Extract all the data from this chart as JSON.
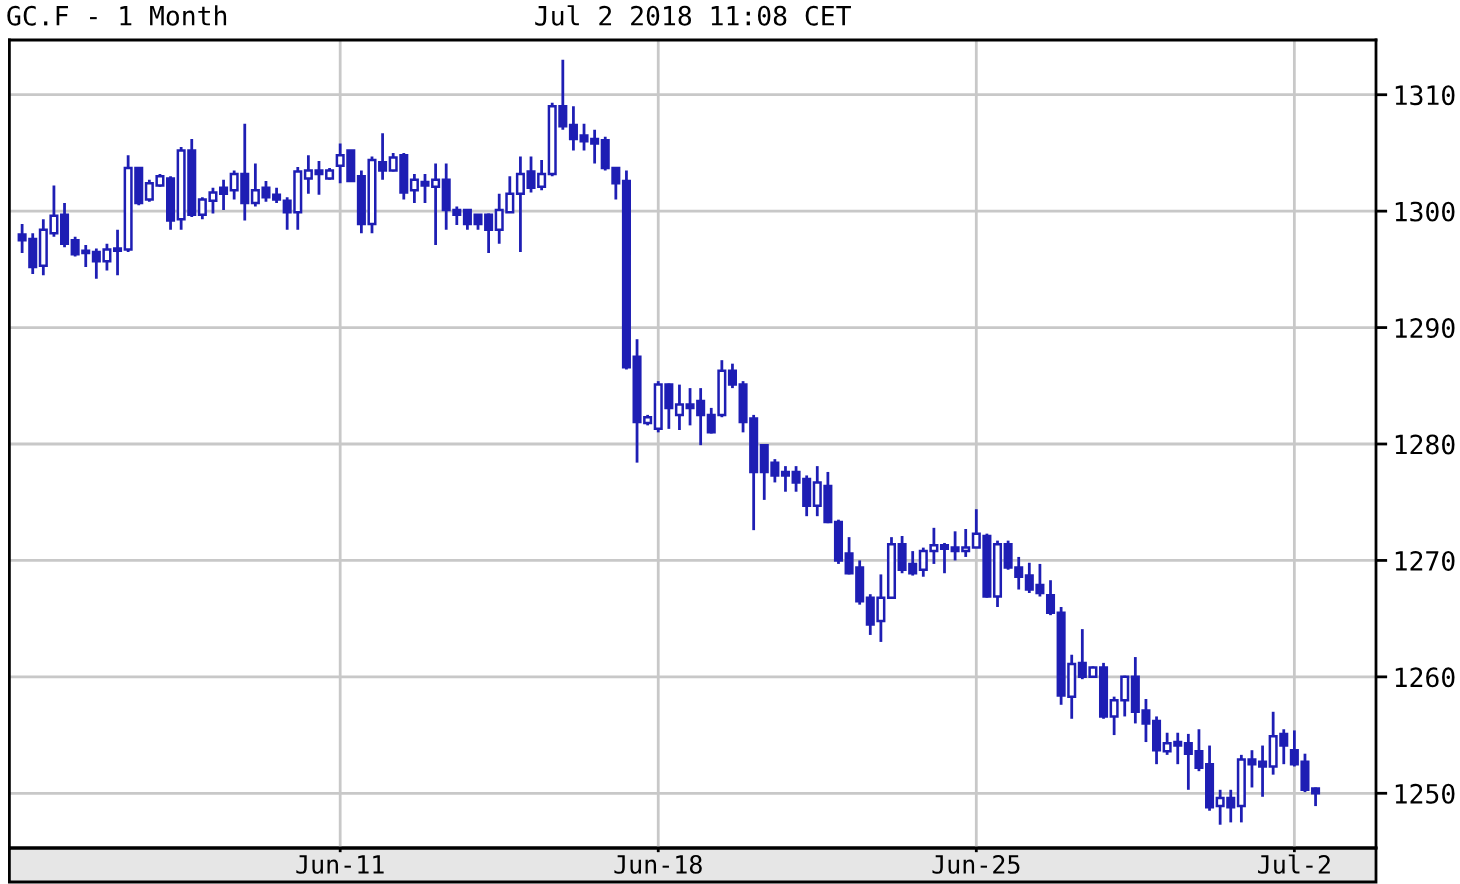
{
  "chart_data": {
    "type": "candlestick",
    "title": "GC.F - 1 Month",
    "subtitle": "Jul 2 2018 11:08 CET",
    "categories": [
      null,
      null,
      null,
      null,
      null,
      null,
      null,
      null,
      null,
      null,
      null,
      null,
      null,
      null,
      null,
      null,
      null,
      null,
      null,
      null,
      null,
      null,
      null,
      null,
      null,
      null,
      null,
      null,
      null,
      null,
      "Jun-11",
      null,
      null,
      null,
      null,
      null,
      null,
      null,
      null,
      null,
      null,
      null,
      null,
      null,
      null,
      null,
      null,
      null,
      null,
      null,
      null,
      null,
      null,
      null,
      null,
      null,
      null,
      null,
      null,
      null,
      "Jun-18",
      null,
      null,
      null,
      null,
      null,
      null,
      null,
      null,
      null,
      null,
      null,
      null,
      null,
      null,
      null,
      null,
      null,
      null,
      null,
      null,
      null,
      null,
      null,
      null,
      null,
      null,
      null,
      null,
      null,
      "Jun-25",
      null,
      null,
      null,
      null,
      null,
      null,
      null,
      null,
      null,
      null,
      null,
      null,
      null,
      null,
      null,
      null,
      null,
      null,
      null,
      null,
      null,
      null,
      null,
      null,
      null,
      null,
      null,
      null,
      null,
      "Jul-2",
      null,
      null
    ],
    "ohlc": [
      [
        1298.0,
        1298.9,
        1296.4,
        1297.5
      ],
      [
        1297.6,
        1298.1,
        1294.6,
        1295.2
      ],
      [
        1295.3,
        1299.3,
        1294.5,
        1298.4
      ],
      [
        1298.1,
        1302.2,
        1297.8,
        1299.6
      ],
      [
        1299.7,
        1300.7,
        1296.9,
        1297.2
      ],
      [
        1297.5,
        1297.8,
        1296.1,
        1296.3
      ],
      [
        1296.6,
        1297.1,
        1295.2,
        1296.4
      ],
      [
        1296.5,
        1296.8,
        1294.2,
        1295.7
      ],
      [
        1295.7,
        1297.2,
        1294.9,
        1296.7
      ],
      [
        1296.6,
        1298.4,
        1294.5,
        1296.8
      ],
      [
        1296.7,
        1304.8,
        1296.5,
        1303.7
      ],
      [
        1303.7,
        1303.7,
        1300.5,
        1300.7
      ],
      [
        1301.0,
        1302.7,
        1300.8,
        1302.4
      ],
      [
        1302.2,
        1303.2,
        1302.1,
        1303.0
      ],
      [
        1302.8,
        1303.0,
        1298.4,
        1299.2
      ],
      [
        1299.3,
        1305.5,
        1298.4,
        1305.2
      ],
      [
        1305.2,
        1306.2,
        1299.5,
        1299.7
      ],
      [
        1299.7,
        1301.2,
        1299.3,
        1301.0
      ],
      [
        1300.9,
        1302.0,
        1299.8,
        1301.6
      ],
      [
        1302.0,
        1302.7,
        1300.1,
        1301.5
      ],
      [
        1301.8,
        1303.5,
        1301.0,
        1303.2
      ],
      [
        1303.2,
        1307.5,
        1299.2,
        1300.7
      ],
      [
        1300.7,
        1304.1,
        1300.4,
        1301.8
      ],
      [
        1302.0,
        1302.6,
        1300.8,
        1301.2
      ],
      [
        1301.4,
        1302.0,
        1300.7,
        1301.0
      ],
      [
        1300.9,
        1301.2,
        1298.4,
        1299.9
      ],
      [
        1299.9,
        1303.8,
        1298.4,
        1303.4
      ],
      [
        1302.8,
        1304.8,
        1301.5,
        1303.5
      ],
      [
        1303.5,
        1304.3,
        1301.4,
        1303.2
      ],
      [
        1302.8,
        1303.7,
        1302.7,
        1303.5
      ],
      [
        1303.9,
        1305.8,
        1302.4,
        1304.8
      ],
      [
        1305.2,
        1305.2,
        1302.5,
        1302.6
      ],
      [
        1303.0,
        1303.5,
        1298.1,
        1298.9
      ],
      [
        1298.9,
        1304.7,
        1298.1,
        1304.4
      ],
      [
        1304.2,
        1306.7,
        1302.7,
        1303.5
      ],
      [
        1303.5,
        1305.0,
        1303.4,
        1304.6
      ],
      [
        1304.8,
        1305.0,
        1301.0,
        1301.6
      ],
      [
        1301.8,
        1303.2,
        1300.7,
        1302.7
      ],
      [
        1302.5,
        1303.2,
        1300.7,
        1302.2
      ],
      [
        1302.1,
        1304.1,
        1297.1,
        1302.7
      ],
      [
        1302.7,
        1304.1,
        1298.4,
        1300.1
      ],
      [
        1300.1,
        1300.4,
        1298.8,
        1299.7
      ],
      [
        1300.1,
        1300.1,
        1298.4,
        1298.9
      ],
      [
        1299.7,
        1299.7,
        1298.4,
        1298.9
      ],
      [
        1299.7,
        1299.8,
        1296.4,
        1298.4
      ],
      [
        1298.4,
        1301.5,
        1297.2,
        1300.1
      ],
      [
        1299.9,
        1303.0,
        1299.9,
        1301.5
      ],
      [
        1301.5,
        1304.7,
        1296.5,
        1303.2
      ],
      [
        1303.4,
        1304.7,
        1301.6,
        1302.0
      ],
      [
        1302.1,
        1304.4,
        1301.8,
        1303.2
      ],
      [
        1303.2,
        1309.3,
        1303.0,
        1309.0
      ],
      [
        1309.0,
        1313.0,
        1307.0,
        1307.3
      ],
      [
        1307.4,
        1309.0,
        1305.2,
        1306.2
      ],
      [
        1306.5,
        1307.5,
        1305.2,
        1306.0
      ],
      [
        1306.2,
        1307.0,
        1304.1,
        1305.8
      ],
      [
        1306.1,
        1306.4,
        1303.5,
        1303.7
      ],
      [
        1303.7,
        1303.8,
        1301.0,
        1302.4
      ],
      [
        1302.6,
        1303.5,
        1286.4,
        1286.6
      ],
      [
        1287.5,
        1289.0,
        1278.4,
        1281.9
      ],
      [
        1281.8,
        1282.5,
        1281.6,
        1282.3
      ],
      [
        1281.3,
        1285.4,
        1281.0,
        1285.1
      ],
      [
        1285.1,
        1285.2,
        1281.3,
        1283.1
      ],
      [
        1282.5,
        1285.1,
        1281.2,
        1283.4
      ],
      [
        1283.4,
        1284.8,
        1281.6,
        1283.1
      ],
      [
        1283.7,
        1284.8,
        1279.9,
        1282.5
      ],
      [
        1282.5,
        1283.1,
        1280.9,
        1281.0
      ],
      [
        1282.5,
        1287.2,
        1282.3,
        1286.3
      ],
      [
        1286.3,
        1286.9,
        1284.8,
        1285.1
      ],
      [
        1285.1,
        1285.4,
        1281.0,
        1281.9
      ],
      [
        1282.2,
        1282.5,
        1272.6,
        1277.6
      ],
      [
        1279.9,
        1279.9,
        1275.2,
        1277.6
      ],
      [
        1278.4,
        1278.7,
        1276.7,
        1277.3
      ],
      [
        1277.6,
        1278.1,
        1275.9,
        1277.3
      ],
      [
        1277.6,
        1278.1,
        1275.9,
        1276.7
      ],
      [
        1277.0,
        1277.3,
        1273.8,
        1274.7
      ],
      [
        1274.7,
        1278.1,
        1273.8,
        1276.7
      ],
      [
        1276.4,
        1277.6,
        1273.2,
        1273.3
      ],
      [
        1273.3,
        1273.5,
        1269.7,
        1270.0
      ],
      [
        1270.6,
        1272.0,
        1268.8,
        1268.9
      ],
      [
        1269.4,
        1270.0,
        1266.2,
        1266.5
      ],
      [
        1266.8,
        1267.1,
        1263.6,
        1264.5
      ],
      [
        1264.8,
        1268.8,
        1263.0,
        1266.8
      ],
      [
        1266.8,
        1272.0,
        1266.8,
        1271.4
      ],
      [
        1271.4,
        1272.1,
        1268.9,
        1269.2
      ],
      [
        1269.7,
        1270.8,
        1268.7,
        1268.9
      ],
      [
        1269.2,
        1271.1,
        1268.6,
        1270.8
      ],
      [
        1270.8,
        1272.8,
        1269.7,
        1271.3
      ],
      [
        1271.3,
        1271.5,
        1268.9,
        1271.0
      ],
      [
        1271.1,
        1272.5,
        1270.0,
        1270.8
      ],
      [
        1270.8,
        1272.7,
        1270.3,
        1271.1
      ],
      [
        1271.1,
        1274.4,
        1271.1,
        1272.3
      ],
      [
        1272.1,
        1272.3,
        1266.8,
        1266.9
      ],
      [
        1266.9,
        1271.7,
        1266.0,
        1271.4
      ],
      [
        1271.4,
        1271.7,
        1269.2,
        1269.4
      ],
      [
        1269.4,
        1270.3,
        1267.5,
        1268.6
      ],
      [
        1268.7,
        1269.8,
        1267.2,
        1267.5
      ],
      [
        1267.9,
        1269.7,
        1266.9,
        1267.2
      ],
      [
        1267.0,
        1268.3,
        1265.3,
        1265.5
      ],
      [
        1265.5,
        1266.0,
        1257.6,
        1258.4
      ],
      [
        1258.3,
        1261.9,
        1256.4,
        1261.1
      ],
      [
        1261.2,
        1264.1,
        1259.8,
        1260.0
      ],
      [
        1260.0,
        1260.9,
        1259.9,
        1260.8
      ],
      [
        1260.8,
        1261.2,
        1256.4,
        1256.6
      ],
      [
        1256.6,
        1258.3,
        1255.0,
        1258.0
      ],
      [
        1258.0,
        1260.1,
        1256.6,
        1260.0
      ],
      [
        1260.0,
        1261.7,
        1256.0,
        1257.0
      ],
      [
        1257.1,
        1258.1,
        1254.4,
        1256.0
      ],
      [
        1256.2,
        1256.6,
        1252.5,
        1253.7
      ],
      [
        1253.6,
        1255.2,
        1253.3,
        1254.3
      ],
      [
        1254.4,
        1255.2,
        1252.5,
        1254.1
      ],
      [
        1254.3,
        1255.1,
        1250.3,
        1253.4
      ],
      [
        1253.6,
        1255.5,
        1251.9,
        1252.2
      ],
      [
        1252.5,
        1254.1,
        1248.5,
        1248.8
      ],
      [
        1248.9,
        1250.3,
        1247.3,
        1249.6
      ],
      [
        1249.6,
        1250.3,
        1247.5,
        1248.8
      ],
      [
        1248.9,
        1253.3,
        1247.5,
        1252.9
      ],
      [
        1252.9,
        1253.7,
        1250.5,
        1252.5
      ],
      [
        1252.7,
        1254.1,
        1249.7,
        1252.3
      ],
      [
        1252.3,
        1257.0,
        1251.6,
        1254.9
      ],
      [
        1255.1,
        1255.5,
        1252.5,
        1254.1
      ],
      [
        1253.7,
        1255.4,
        1252.3,
        1252.5
      ],
      [
        1252.7,
        1253.4,
        1250.1,
        1250.3
      ],
      [
        1250.4,
        1250.5,
        1248.9,
        1250.0
      ]
    ],
    "color": "#1e1eb4",
    "ylim": [
      1245.3,
      1314.7
    ],
    "yticks": [
      1250,
      1260,
      1270,
      1280,
      1290,
      1300,
      1310
    ],
    "grid": true
  }
}
